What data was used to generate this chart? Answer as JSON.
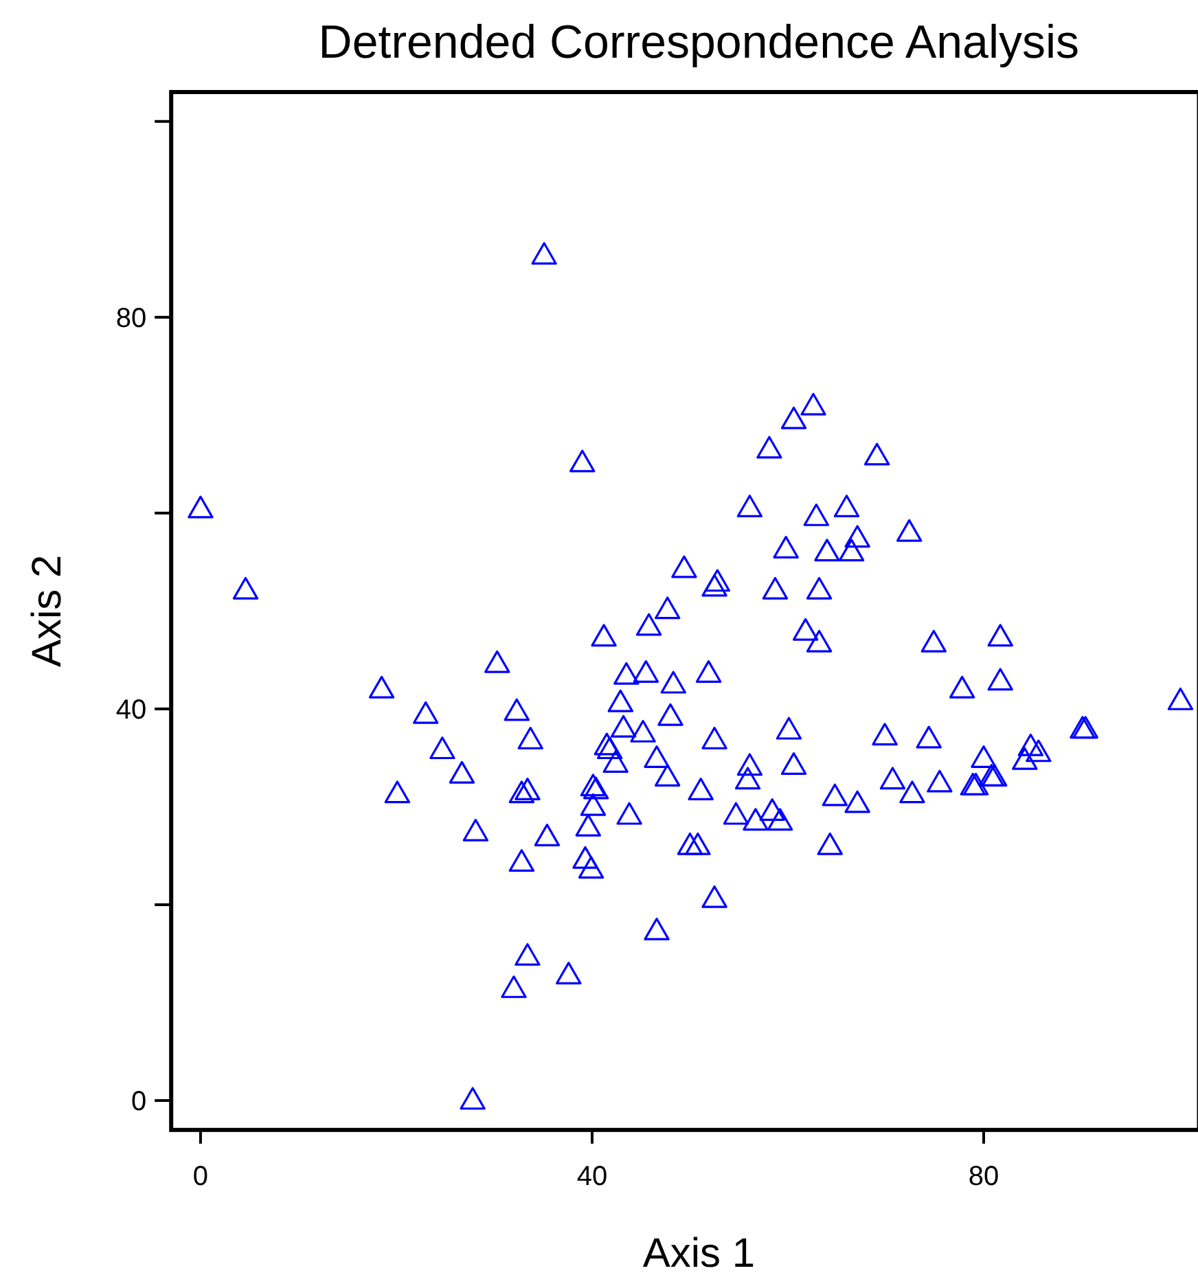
{
  "chart_data": {
    "type": "scatter",
    "title": "Detrended Correspondence Analysis",
    "xlabel": "Axis 1",
    "ylabel": "Axis 2",
    "xlim": [
      -3,
      102
    ],
    "ylim": [
      -3,
      103
    ],
    "xticks": [
      0,
      40,
      80
    ],
    "yticks": [
      0,
      {
        "value": 20,
        "label": null
      },
      40,
      {
        "value": 60,
        "label": null
      },
      80,
      {
        "value": 100,
        "label": null
      }
    ],
    "grid": false,
    "marker": "triangle",
    "series": [
      {
        "color": "#0000ff",
        "x": [
          0,
          4.6,
          35.1,
          39.0,
          18.5,
          20.1,
          23.0,
          24.7,
          26.7,
          28.1,
          30.3,
          32.3,
          33.7,
          32.8,
          33.4,
          35.4,
          32.8,
          33.4,
          32.0,
          37.6,
          27.8,
          39.6,
          39.3,
          39.9,
          40.1,
          40.1,
          40.4,
          41.2,
          41.5,
          41.8,
          42.4,
          42.9,
          43.5,
          43.2,
          43.8,
          45.2,
          45.5,
          45.8,
          46.6,
          46.6,
          47.7,
          47.7,
          48.0,
          48.3,
          49.4,
          50.0,
          50.8,
          51.1,
          51.9,
          52.5,
          52.8,
          52.5,
          52.5,
          54.7,
          56.1,
          55.9,
          56.1,
          56.7,
          58.1,
          58.7,
          58.4,
          59.2,
          59.8,
          60.1,
          60.6,
          60.6,
          62.6,
          61.8,
          62.9,
          63.2,
          63.2,
          64.0,
          64.3,
          64.8,
          66.0,
          66.5,
          67.1,
          67.1,
          69.1,
          69.9,
          70.7,
          72.4,
          72.7,
          74.4,
          74.9,
          75.5,
          77.8,
          78.9,
          79.2,
          80.0,
          80.8,
          81.1,
          81.7,
          81.7,
          84.2,
          84.8,
          85.6,
          90.1,
          90.4,
          100.1
        ],
        "values": [
          60.4,
          52.1,
          86.3,
          65.1,
          42.0,
          31.3,
          39.4,
          35.8,
          33.3,
          27.4,
          44.6,
          39.7,
          36.8,
          31.3,
          31.6,
          26.9,
          24.3,
          14.7,
          11.4,
          12.8,
          0,
          27.9,
          24.6,
          23.6,
          30.0,
          32.0,
          31.7,
          47.3,
          36.2,
          35.8,
          34.4,
          40.6,
          43.4,
          38.0,
          29.1,
          37.5,
          43.6,
          48.4,
          34.9,
          17.3,
          50.1,
          33.0,
          39.2,
          42.5,
          54.3,
          26.0,
          26.0,
          31.6,
          43.6,
          52.4,
          52.9,
          36.8,
          20.6,
          29.1,
          60.5,
          32.7,
          34.1,
          28.5,
          66.5,
          52.1,
          29.5,
          28.5,
          56.3,
          37.8,
          34.2,
          69.5,
          70.9,
          47.9,
          59.6,
          52.1,
          46.7,
          56.0,
          26.0,
          31.0,
          60.5,
          56.0,
          57.4,
          30.3,
          65.8,
          37.2,
          32.7,
          58.0,
          31.3,
          36.9,
          46.7,
          32.4,
          42.0,
          32.1,
          32.1,
          34.9,
          33.0,
          33.0,
          47.3,
          42.8,
          34.7,
          36.1,
          35.5,
          37.9,
          37.9,
          40.8
        ]
      }
    ]
  }
}
